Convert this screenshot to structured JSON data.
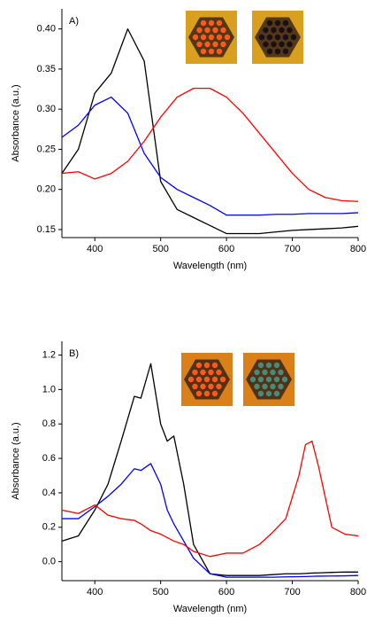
{
  "chart_data": [
    {
      "type": "line",
      "annotation": "A)",
      "x_label": "Wavelength (nm)",
      "y_label": "Absorbance (a.u.)",
      "xlim": [
        350,
        800
      ],
      "ylim": [
        0.14,
        0.425
      ],
      "xticks": [
        400,
        500,
        600,
        700,
        800
      ],
      "yticks": [
        0.15,
        {
          "value": 0.2,
          "label": "0.20"
        },
        0.25,
        {
          "value": 0.3,
          "label": "0.30"
        },
        0.35,
        {
          "value": 0.4,
          "label": "0.40"
        }
      ],
      "x": [
        350,
        375,
        400,
        425,
        450,
        475,
        500,
        525,
        550,
        575,
        600,
        625,
        650,
        675,
        700,
        725,
        750,
        775,
        800
      ],
      "series": [
        {
          "color": "#000000",
          "values": [
            0.22,
            0.25,
            0.32,
            0.345,
            0.4,
            0.36,
            0.21,
            0.175,
            0.165,
            0.155,
            0.145,
            0.145,
            0.145,
            0.147,
            0.149,
            0.15,
            0.151,
            0.152,
            0.154
          ]
        },
        {
          "color": "#0000ff",
          "values": [
            0.265,
            0.28,
            0.305,
            0.315,
            0.295,
            0.245,
            0.215,
            0.2,
            0.19,
            0.18,
            0.168,
            0.168,
            0.168,
            0.169,
            0.169,
            0.17,
            0.17,
            0.17,
            0.171
          ]
        },
        {
          "color": "#ff0000",
          "values": [
            0.22,
            0.222,
            0.213,
            0.22,
            0.235,
            0.26,
            0.29,
            0.315,
            0.326,
            0.326,
            0.315,
            0.295,
            0.27,
            0.245,
            0.22,
            0.2,
            0.19,
            0.186,
            0.185
          ]
        }
      ]
    },
    {
      "type": "line",
      "annotation": "B)",
      "x_label": "Wavelength (nm)",
      "y_label": "Absorbance (a.u.)",
      "xlim": [
        350,
        800
      ],
      "ylim": [
        -0.11,
        1.28
      ],
      "xticks": [
        400,
        500,
        600,
        700,
        800
      ],
      "yticks": [
        {
          "value": 0,
          "label": "0.0"
        },
        0.2,
        0.4,
        0.6,
        0.8,
        {
          "value": 1,
          "label": "1.0"
        },
        1.2
      ],
      "x": [
        350,
        375,
        400,
        420,
        440,
        460,
        470,
        485,
        500,
        510,
        520,
        535,
        550,
        575,
        600,
        625,
        650,
        670,
        690,
        710,
        720,
        730,
        740,
        760,
        780,
        800
      ],
      "series": [
        {
          "color": "#000000",
          "values": [
            0.12,
            0.15,
            0.3,
            0.45,
            0.7,
            0.96,
            0.95,
            1.15,
            0.8,
            0.7,
            0.73,
            0.45,
            0.1,
            -0.07,
            -0.08,
            -0.08,
            -0.08,
            -0.075,
            -0.07,
            -0.07,
            -0.068,
            -0.066,
            -0.065,
            -0.062,
            -0.06,
            -0.06
          ]
        },
        {
          "color": "#0000ff",
          "values": [
            0.25,
            0.25,
            0.32,
            0.38,
            0.45,
            0.54,
            0.53,
            0.57,
            0.45,
            0.3,
            0.22,
            0.12,
            0.02,
            -0.07,
            -0.09,
            -0.09,
            -0.09,
            -0.09,
            -0.088,
            -0.087,
            -0.086,
            -0.085,
            -0.084,
            -0.083,
            -0.082,
            -0.08
          ]
        },
        {
          "color": "#ff0000",
          "values": [
            0.3,
            0.28,
            0.33,
            0.27,
            0.25,
            0.24,
            0.22,
            0.18,
            0.16,
            0.14,
            0.12,
            0.1,
            0.06,
            0.03,
            0.05,
            0.05,
            0.1,
            0.17,
            0.25,
            0.5,
            0.68,
            0.7,
            0.55,
            0.2,
            0.16,
            0.15
          ]
        }
      ]
    }
  ]
}
